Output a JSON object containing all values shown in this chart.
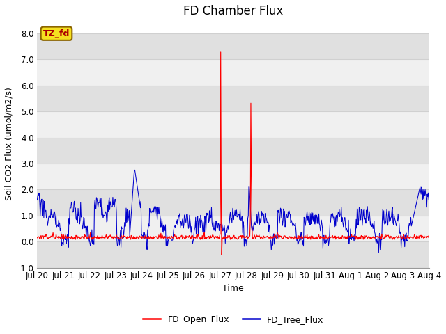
{
  "title": "FD Chamber Flux",
  "ylabel": "Soil CO2 Flux (umol/m2/s)",
  "xlabel": "Time",
  "ylim": [
    -1.0,
    8.5
  ],
  "yticks": [
    -1.0,
    0.0,
    1.0,
    2.0,
    3.0,
    4.0,
    5.0,
    6.0,
    7.0,
    8.0
  ],
  "xlim_days": 15,
  "xtick_labels": [
    "Jul 20",
    "Jul 21",
    "Jul 22",
    "Jul 23",
    "Jul 24",
    "Jul 25",
    "Jul 26",
    "Jul 27",
    "Jul 28",
    "Jul 29",
    "Jul 30",
    "Jul 31",
    "Aug 1",
    "Aug 2",
    "Aug 3",
    "Aug 4"
  ],
  "fig_bg_color": "#ffffff",
  "plot_bg_color": "#ffffff",
  "band_light": "#f0f0f0",
  "band_dark": "#e0e0e0",
  "red_color": "#ff0000",
  "blue_color": "#0000cc",
  "label_box_text": "TZ_fd",
  "label_box_bg": "#f5e020",
  "label_box_border": "#8b6400",
  "label_box_text_color": "#aa0000",
  "legend_entries": [
    "FD_Open_Flux",
    "FD_Tree_Flux"
  ],
  "title_fontsize": 12,
  "axis_label_fontsize": 9,
  "tick_fontsize": 8.5,
  "grid_color": "#d0d0d0",
  "grid_linewidth": 0.8
}
